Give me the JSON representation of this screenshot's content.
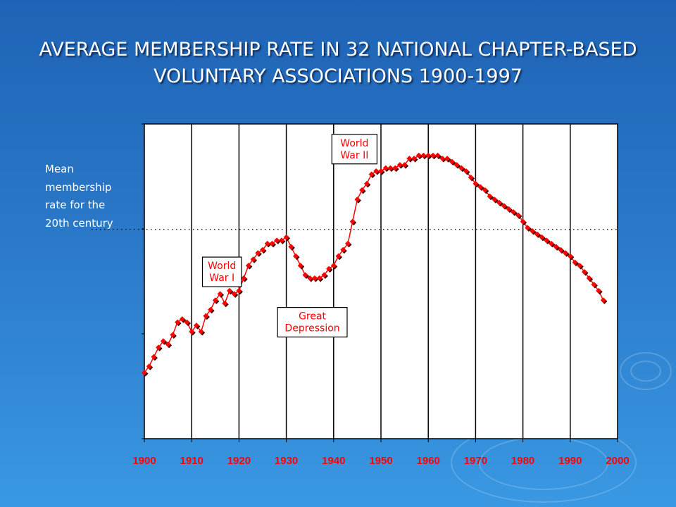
{
  "slide": {
    "title_lines": [
      "AVERAGE MEMBERSHIP RATE IN 32 NATIONAL CHAPTER-BASED",
      "VOLUNTARY ASSOCIATIONS 1900-1997"
    ],
    "mean_label_lines": [
      "Mean",
      "membership",
      "rate for the",
      "20th century"
    ],
    "colors": {
      "background": "#2a78c8",
      "series": "#ff0000",
      "tick_labels": "#ff0000",
      "plot_background": "#ffffff",
      "annotation_text": "#ff0000"
    }
  },
  "chart_data": {
    "type": "line",
    "title": "AVERAGE MEMBERSHIP RATE IN 32 NATIONAL CHAPTER-BASED VOLUNTARY ASSOCIATIONS 1900-1997",
    "xlabel": "",
    "ylabel": "",
    "xlim": [
      1900,
      2000
    ],
    "ylim": [
      0,
      1
    ],
    "x_ticks": [
      1900,
      1910,
      1920,
      1930,
      1940,
      1950,
      1960,
      1970,
      1980,
      1990,
      2000
    ],
    "x_tick_labels": [
      "1900",
      "1910",
      "1920",
      "1930",
      "1940",
      "1950",
      "1960",
      "1970",
      "1980",
      "1990",
      "2000"
    ],
    "grid": "vertical",
    "reference_line": {
      "y": 0.665,
      "style": "dotted"
    },
    "annotations": [
      {
        "text": "World War II",
        "lines": [
          "World",
          "War II"
        ],
        "x": 1944.4,
        "y": 0.92
      },
      {
        "text": "World War I",
        "lines": [
          "World",
          "War I"
        ],
        "x": 1916.4,
        "y": 0.53
      },
      {
        "text": "Great Depression",
        "lines": [
          "Great",
          "Depression"
        ],
        "x": 1935.5,
        "y": 0.37
      }
    ],
    "series": [
      {
        "x": [
          1900,
          1901,
          1902,
          1903,
          1904,
          1905,
          1906,
          1907,
          1908,
          1909,
          1910,
          1911,
          1912,
          1913,
          1914,
          1915,
          1916,
          1917,
          1918,
          1919,
          1920,
          1921,
          1922,
          1923,
          1924,
          1925,
          1926,
          1927,
          1928,
          1929,
          1930,
          1931,
          1932,
          1933,
          1934,
          1935,
          1936,
          1937,
          1938,
          1939,
          1940,
          1941,
          1942,
          1943,
          1944,
          1945,
          1946,
          1947,
          1948,
          1949,
          1950,
          1951,
          1952,
          1953,
          1954,
          1955,
          1956,
          1957,
          1958,
          1959,
          1960,
          1961,
          1962,
          1963,
          1964,
          1965,
          1966,
          1967,
          1968,
          1969,
          1970,
          1971,
          1972,
          1973,
          1974,
          1975,
          1976,
          1977,
          1978,
          1979,
          1980,
          1981,
          1982,
          1983,
          1984,
          1985,
          1986,
          1987,
          1988,
          1989,
          1990,
          1991,
          1992,
          1993,
          1994,
          1995,
          1996,
          1997
        ],
        "values": [
          0.21,
          0.23,
          0.26,
          0.29,
          0.31,
          0.3,
          0.33,
          0.37,
          0.38,
          0.37,
          0.34,
          0.36,
          0.34,
          0.39,
          0.41,
          0.44,
          0.46,
          0.43,
          0.47,
          0.46,
          0.47,
          0.51,
          0.55,
          0.57,
          0.59,
          0.6,
          0.62,
          0.62,
          0.63,
          0.63,
          0.64,
          0.61,
          0.58,
          0.55,
          0.52,
          0.51,
          0.51,
          0.51,
          0.52,
          0.54,
          0.55,
          0.58,
          0.6,
          0.62,
          0.69,
          0.76,
          0.79,
          0.81,
          0.84,
          0.85,
          0.85,
          0.86,
          0.86,
          0.86,
          0.87,
          0.87,
          0.89,
          0.89,
          0.9,
          0.9,
          0.9,
          0.9,
          0.9,
          0.89,
          0.89,
          0.88,
          0.87,
          0.86,
          0.85,
          0.83,
          0.81,
          0.8,
          0.79,
          0.77,
          0.76,
          0.75,
          0.74,
          0.73,
          0.72,
          0.71,
          0.69,
          0.67,
          0.66,
          0.65,
          0.64,
          0.63,
          0.62,
          0.61,
          0.6,
          0.59,
          0.58,
          0.56,
          0.55,
          0.53,
          0.51,
          0.49,
          0.47,
          0.44
        ]
      }
    ]
  }
}
